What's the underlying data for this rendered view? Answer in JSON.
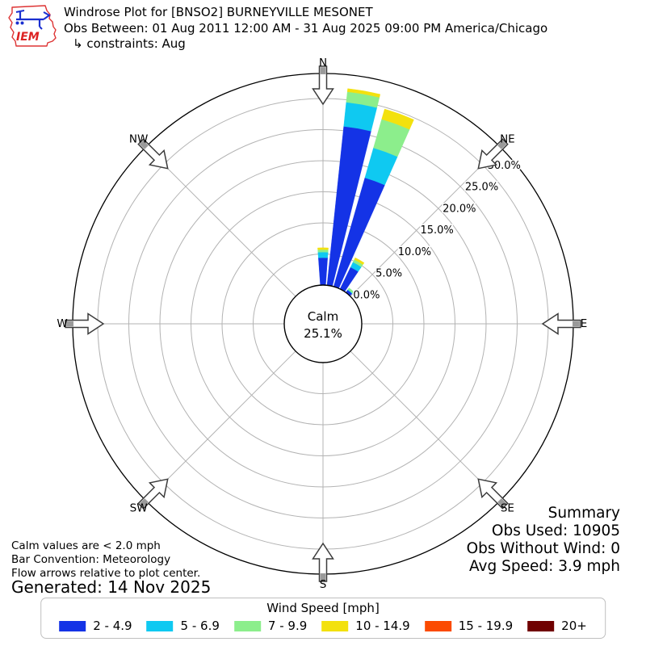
{
  "header": {
    "title": "Windrose Plot for [BNSO2] BURNEYVILLE MESONET",
    "subtitle": "Obs Between: 01 Aug 2011 12:00 AM - 31 Aug 2025 09:00 PM America/Chicago",
    "constraints": "↳ constraints: Aug",
    "logo_text": "IEM"
  },
  "chart_data": {
    "type": "windrose",
    "units": "mph",
    "title": "Windrose Plot for [BNSO2] BURNEYVILLE MESONET",
    "bar_convention": "Meteorology",
    "direction_bin_width_deg": 10,
    "radial_axis_max_pct": 34,
    "grid": true,
    "compass_points": [
      "N",
      "NE",
      "E",
      "SE",
      "S",
      "SW",
      "W",
      "NW"
    ],
    "ring_ticks_pct": [
      0,
      5,
      10,
      15,
      20,
      25,
      30
    ],
    "ring_tick_labels": [
      "0.0%",
      "5.0%",
      "10.0%",
      "15.0%",
      "20.0%",
      "25.0%",
      "30.0%"
    ],
    "calm": {
      "label": "Calm",
      "pct_label": "25.1%",
      "pct": 25.1
    },
    "legend_title": "Wind Speed [mph]",
    "speed_bins": [
      {
        "label": "2 - 4.9",
        "color": "#1433e6"
      },
      {
        "label": "5 - 6.9",
        "color": "#0fc9f1"
      },
      {
        "label": "7 - 9.9",
        "color": "#8cee8c"
      },
      {
        "label": "10 - 14.9",
        "color": "#f3e10e"
      },
      {
        "label": "15 - 19.9",
        "color": "#fb4a00"
      },
      {
        "label": "20+",
        "color": "#700000"
      }
    ],
    "bars": [
      {
        "direction_deg": 0,
        "segments_pct": [
          4.4,
          0.9,
          0.4,
          0.3,
          0,
          0
        ],
        "total_pct": 6.0
      },
      {
        "direction_deg": 10,
        "segments_pct": [
          25.7,
          3.9,
          1.7,
          0.5,
          0,
          0
        ],
        "total_pct": 31.8
      },
      {
        "direction_deg": 20,
        "segments_pct": [
          18.2,
          5.0,
          4.8,
          1.7,
          0,
          0
        ],
        "total_pct": 29.7
      },
      {
        "direction_deg": 30,
        "segments_pct": [
          3.9,
          0.9,
          0.45,
          0.35,
          0,
          0
        ],
        "total_pct": 5.6
      },
      {
        "direction_deg": 40,
        "segments_pct": [
          0.5,
          0.1,
          0.3,
          0,
          0,
          0
        ],
        "total_pct": 0.9
      }
    ]
  },
  "summary": {
    "title": "Summary",
    "obs_used": "Obs Used: 10905",
    "obs_without_wind": "Obs Without Wind: 0",
    "avg_speed": "Avg Speed: 3.9 mph"
  },
  "footnotes": {
    "calm_note": "Calm values are < 2.0 mph",
    "convention_note": "Bar Convention: Meteorology",
    "arrows_note": "Flow arrows relative to plot center.",
    "generated": "Generated: 14 Nov 2025"
  }
}
